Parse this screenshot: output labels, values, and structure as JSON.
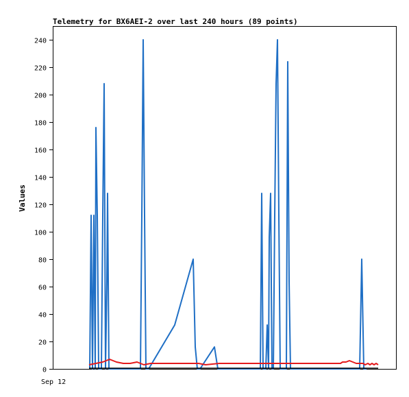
{
  "chart_data": {
    "type": "line",
    "title": "Telemetry for BX6AEI-2 over last 240 hours (89 points)",
    "xlabel": "",
    "ylabel": "Values",
    "x_tick_labels": [
      "Sep 12"
    ],
    "ylim": [
      0,
      250
    ],
    "yticks": [
      0,
      20,
      40,
      60,
      80,
      100,
      120,
      140,
      160,
      180,
      200,
      220,
      240
    ],
    "grid": false,
    "colors": {
      "series_blue": "#1f6fc5",
      "series_red": "#e41a1c",
      "series_black": "#000000"
    },
    "series": [
      {
        "color": "#1f6fc5",
        "points": [
          [
            131,
            0
          ],
          [
            133,
            112
          ],
          [
            135,
            0
          ],
          [
            137,
            112
          ],
          [
            139,
            0
          ],
          [
            140,
            176
          ],
          [
            142,
            112
          ],
          [
            144,
            0
          ],
          [
            146,
            0
          ],
          [
            148,
            0
          ],
          [
            150,
            112
          ],
          [
            152,
            208
          ],
          [
            154,
            0
          ],
          [
            156,
            64
          ],
          [
            157,
            128
          ],
          [
            159,
            0
          ],
          [
            161,
            0
          ],
          [
            205,
            0
          ],
          [
            207,
            112
          ],
          [
            209,
            240
          ],
          [
            211,
            112
          ],
          [
            213,
            0
          ],
          [
            215,
            0
          ],
          [
            217,
            0
          ],
          [
            255,
            32
          ],
          [
            282,
            80
          ],
          [
            285,
            16
          ],
          [
            288,
            0
          ],
          [
            290,
            0
          ],
          [
            292,
            0
          ],
          [
            313,
            16
          ],
          [
            318,
            0
          ],
          [
            320,
            0
          ],
          [
            378,
            0
          ],
          [
            380,
            0
          ],
          [
            382,
            128
          ],
          [
            384,
            0
          ],
          [
            386,
            0
          ],
          [
            388,
            0
          ],
          [
            390,
            32
          ],
          [
            392,
            0
          ],
          [
            393,
            96
          ],
          [
            395,
            128
          ],
          [
            397,
            0
          ],
          [
            399,
            0
          ],
          [
            401,
            112
          ],
          [
            403,
            208
          ],
          [
            405,
            240
          ],
          [
            407,
            112
          ],
          [
            409,
            0
          ],
          [
            411,
            0
          ],
          [
            413,
            0
          ],
          [
            418,
            0
          ],
          [
            420,
            224
          ],
          [
            422,
            64
          ],
          [
            424,
            0
          ],
          [
            426,
            0
          ],
          [
            522,
            0
          ],
          [
            525,
            0
          ],
          [
            528,
            80
          ],
          [
            531,
            0
          ],
          [
            535,
            0
          ]
        ]
      },
      {
        "color": "#e41a1c",
        "points": [
          [
            130,
            3
          ],
          [
            140,
            4
          ],
          [
            150,
            5
          ],
          [
            160,
            7
          ],
          [
            170,
            5
          ],
          [
            180,
            4
          ],
          [
            190,
            4
          ],
          [
            200,
            5
          ],
          [
            210,
            3
          ],
          [
            220,
            4
          ],
          [
            240,
            4
          ],
          [
            280,
            4
          ],
          [
            290,
            4
          ],
          [
            300,
            3
          ],
          [
            320,
            4
          ],
          [
            380,
            4
          ],
          [
            400,
            4
          ],
          [
            420,
            4
          ],
          [
            440,
            4
          ],
          [
            480,
            4
          ],
          [
            497,
            4
          ],
          [
            500,
            5
          ],
          [
            505,
            5
          ],
          [
            510,
            6
          ],
          [
            515,
            5
          ],
          [
            520,
            4
          ],
          [
            530,
            4
          ],
          [
            533,
            3
          ],
          [
            537,
            4
          ],
          [
            540,
            3
          ],
          [
            543,
            4
          ],
          [
            546,
            3
          ],
          [
            549,
            4
          ],
          [
            552,
            3
          ]
        ]
      },
      {
        "color": "#000000",
        "points": [
          [
            130,
            0.5
          ],
          [
            552,
            0.5
          ]
        ]
      }
    ]
  }
}
